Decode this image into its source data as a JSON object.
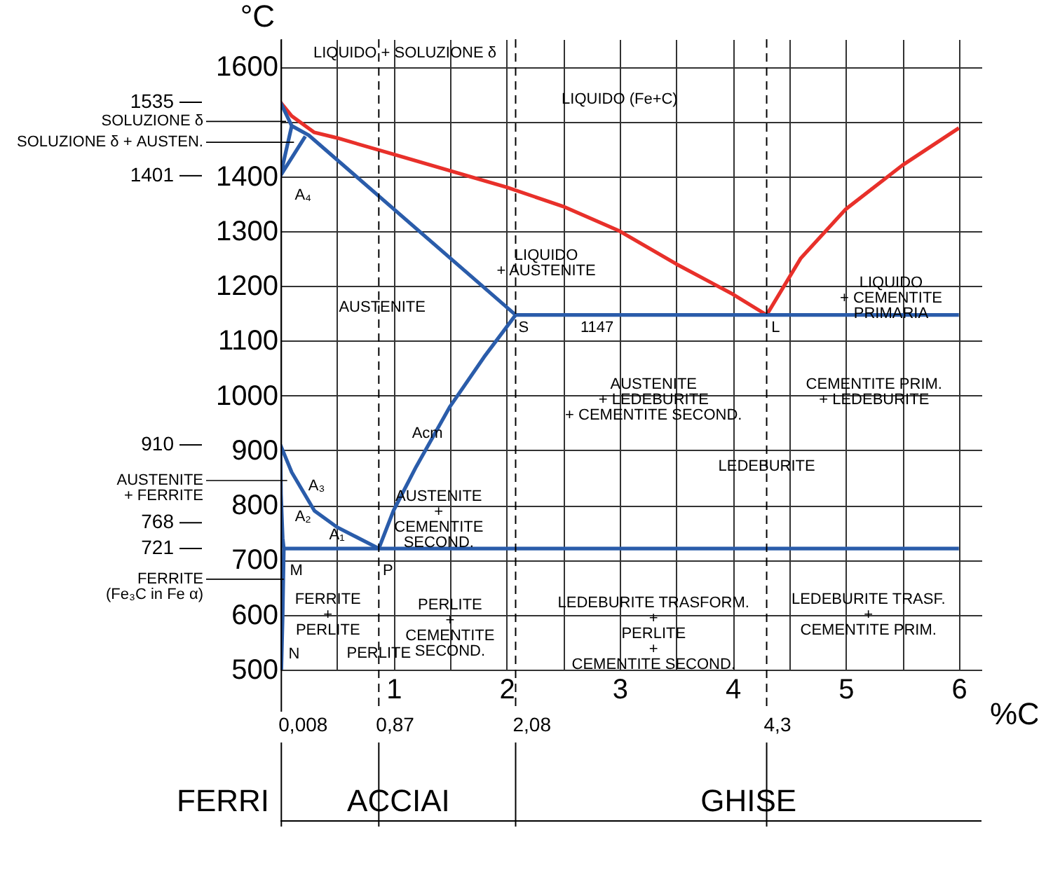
{
  "chart_data": {
    "type": "line",
    "xlabel": "%C",
    "ylabel": "°C",
    "xlim": [
      0,
      6.2
    ],
    "ylim": [
      500,
      1650
    ],
    "xticks": [
      {
        "value": 0,
        "label": null
      },
      {
        "value": 0.5,
        "label": null
      },
      1,
      {
        "value": 1.5,
        "label": null
      },
      2,
      {
        "value": 2.5,
        "label": null
      },
      3,
      {
        "value": 3.5,
        "label": null
      },
      4,
      {
        "value": 4.5,
        "label": null
      },
      5,
      {
        "value": 5.5,
        "label": null
      },
      6
    ],
    "yticks": [
      500,
      600,
      700,
      800,
      900,
      1000,
      1100,
      1200,
      1300,
      1400,
      {
        "value": 1500,
        "label": null
      },
      1600
    ],
    "grid": true,
    "marker": "none",
    "line_style": "solid",
    "series": [
      {
        "color": "#e8302a",
        "x": [
          0,
          0.1,
          0.3,
          0.5,
          1,
          1.5,
          2,
          2.5,
          3,
          3.5,
          4,
          4.3
        ],
        "values": [
          1535,
          1510,
          1480,
          1470,
          1440,
          1410,
          1380,
          1345,
          1300,
          1240,
          1185,
          1147
        ]
      },
      {
        "color": "#e8302a",
        "x": [
          4.3,
          4.6,
          5,
          5.5,
          6
        ],
        "values": [
          1147,
          1250,
          1340,
          1420,
          1488
        ]
      },
      {
        "color": "#2a5caa",
        "x": [
          0,
          0.1,
          0.25,
          2.08
        ],
        "values": [
          1535,
          1492,
          1475,
          1147
        ]
      },
      {
        "color": "#2a5caa",
        "x": [
          0.1,
          0,
          0.22
        ],
        "values": [
          1492,
          1401,
          1473
        ]
      },
      {
        "color": "#2a5caa",
        "x": [
          0.87,
          1,
          1.2,
          1.5,
          1.8,
          2.08
        ],
        "values": [
          721,
          790,
          870,
          980,
          1070,
          1147
        ]
      },
      {
        "color": "#2a5caa",
        "x": [
          2.08,
          6
        ],
        "values": [
          1147,
          1147
        ]
      },
      {
        "color": "#2a5caa",
        "x": [
          0.03,
          6
        ],
        "values": [
          721,
          721
        ]
      },
      {
        "color": "#2a5caa",
        "x": [
          0,
          0.1,
          0.3,
          0.5,
          0.87
        ],
        "values": [
          910,
          860,
          790,
          760,
          721
        ]
      },
      {
        "color": "#2a5caa",
        "x": [
          0,
          0.005,
          0.02,
          0.03,
          0.02,
          0.008
        ],
        "values": [
          910,
          820,
          740,
          721,
          600,
          500
        ]
      }
    ],
    "ref_lines": [
      {
        "axis": "y",
        "value": 1535,
        "label": "1535"
      },
      {
        "axis": "y",
        "value": 1401,
        "label": "1401"
      },
      {
        "axis": "y",
        "value": 910,
        "label": "910"
      },
      {
        "axis": "y",
        "value": 768,
        "label": "768"
      },
      {
        "axis": "y",
        "value": 721,
        "label": "721"
      },
      {
        "axis": "x",
        "value": 0.008,
        "label": "0,008",
        "line_style": "solid"
      },
      {
        "axis": "x",
        "value": 0.87,
        "label": "0,87",
        "line_style": "dashed"
      },
      {
        "axis": "x",
        "value": 2.08,
        "label": "2,08",
        "line_style": "dashed"
      },
      {
        "axis": "x",
        "value": 4.3,
        "label": "4,3",
        "line_style": "dashed"
      }
    ],
    "annotations": [
      "LIQUIDO + SOLUZIONE δ",
      "A₄",
      "LIQUIDO (Fe+C)",
      "LIQUIDO\n+ AUSTENITE",
      "LIQUIDO\n+ CEMENTITE\nPRIMARIA",
      "S",
      "1147",
      "L",
      "AUSTENITE\n+ LEDEBURITE\n+ CEMENTITE SECOND.",
      "CEMENTITE PRIM.\n+ LEDEBURITE",
      "A₃",
      "A₂",
      "A₁",
      "M",
      "N",
      "FERRITE\n+\nPERLITE",
      "PERLITE\n+\nCEMENTITE\nSECOND.",
      "LEDEBURITE TRASFORM.\n+\nPERLITE\n+\nCEMENTITE SECOND.",
      "LEDEBURITE TRASF.\n+\nCEMENTITE PRIM.",
      "PERLITE",
      "AUSTENITE\n+\nCEMENTITE\nSECOND.",
      "P",
      "FERRI",
      "ACCIAI",
      "GHISE",
      {
        "text": "SOLUZIONE δ",
        "x": 0.05,
        "y": 1500
      },
      {
        "text": "SOLUZIONE δ + AUSTEN.",
        "x": 0.12,
        "y": 1462
      },
      {
        "text": "AUSTENITE",
        "x": 0.9,
        "y": 1160
      },
      {
        "text": "Acm",
        "x": 1.3,
        "y": 930
      },
      {
        "text": "LEDEBURITE",
        "x": 4.3,
        "y": 870
      },
      {
        "text": "AUSTENITE\n+ FERRITE",
        "x": 0.06,
        "y": 845
      },
      {
        "text": "FERRITE\n(Fe₃C in Fe α)",
        "x": 0.03,
        "y": 665
      }
    ]
  }
}
